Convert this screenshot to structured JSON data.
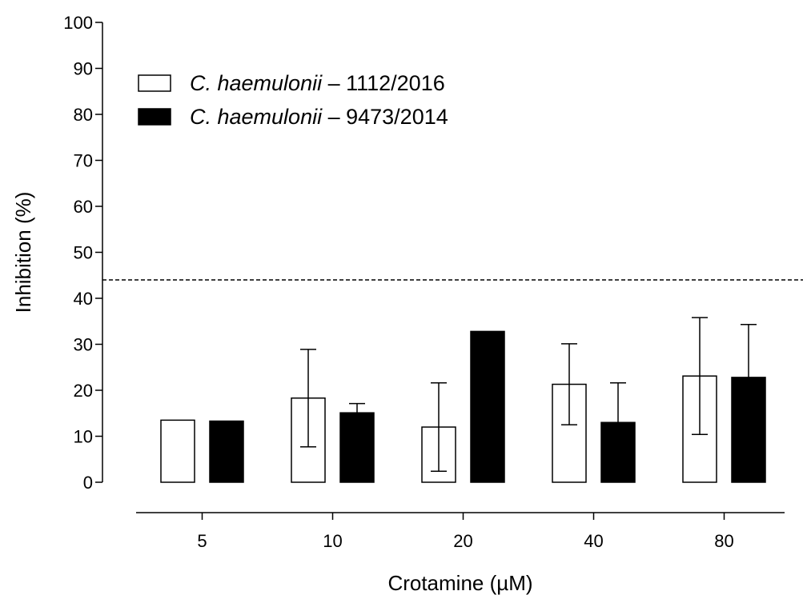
{
  "chart_data": {
    "type": "bar",
    "xlabel": "Crotamine (µM)",
    "ylabel": "Inhibition (%)",
    "ylim": [
      0,
      100
    ],
    "y_ticks": [
      0,
      10,
      20,
      30,
      40,
      50,
      60,
      70,
      80,
      90,
      100
    ],
    "categories": [
      "5",
      "10",
      "20",
      "40",
      "80"
    ],
    "reference_line": 44,
    "legend_position": "top-left",
    "series": [
      {
        "name_italic": "C. haemulonii",
        "name_suffix": "– 1112/2016",
        "fill": "#ffffff",
        "stroke": "#000000",
        "values": [
          13.5,
          18.3,
          12.0,
          21.3,
          23.1
        ],
        "error": [
          0,
          10.6,
          9.6,
          8.8,
          12.7
        ]
      },
      {
        "name_italic": "C. haemulonii",
        "name_suffix": "– 9473/2014",
        "fill": "#000000",
        "stroke": "#000000",
        "values": [
          13.3,
          15.1,
          32.8,
          13.0,
          22.8
        ],
        "error": [
          0,
          2.0,
          0,
          8.6,
          11.5
        ]
      }
    ]
  }
}
